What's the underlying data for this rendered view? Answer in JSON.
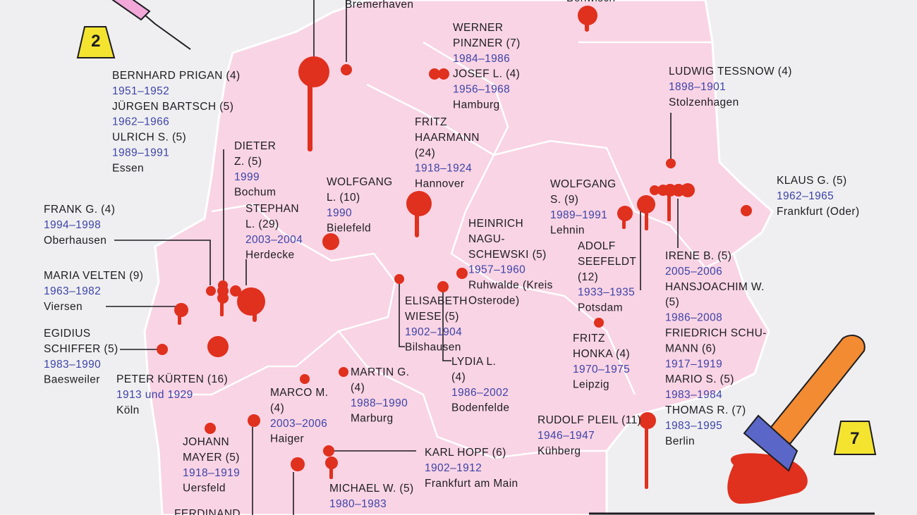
{
  "evidence_markers": [
    "2",
    "7"
  ],
  "blocks": [
    {
      "people": [],
      "place": [
        "Bremerhaven"
      ]
    },
    {
      "people": [],
      "place": [
        "Benwisch"
      ]
    },
    {
      "people": [
        {
          "name": [
            "WERNER",
            "PINZNER (7)"
          ],
          "years": "1984–1986"
        },
        {
          "name": [
            "JOSEF L. (4)"
          ],
          "years": "1956–1968"
        }
      ],
      "place": [
        "Hamburg"
      ]
    },
    {
      "people": [
        {
          "name": [
            "BERNHARD PRIGAN (4)"
          ],
          "years": "1951–1952"
        },
        {
          "name": [
            "JÜRGEN BARTSCH (5)"
          ],
          "years": "1962–1966"
        },
        {
          "name": [
            "ULRICH S. (5)"
          ],
          "years": "1989–1991"
        }
      ],
      "place": [
        "Essen"
      ]
    },
    {
      "people": [
        {
          "name": [
            "LUDWIG TESSNOW (4)"
          ],
          "years": "1898–1901"
        }
      ],
      "place": [
        "Stolzenhagen"
      ]
    },
    {
      "people": [
        {
          "name": [
            "FRITZ",
            "HAARMANN",
            "(24)"
          ],
          "years": "1918–1924"
        }
      ],
      "place": [
        "Hannover"
      ]
    },
    {
      "people": [
        {
          "name": [
            "DIETER",
            "Z. (5)"
          ],
          "years": "1999"
        }
      ],
      "place": [
        "Bochum"
      ]
    },
    {
      "people": [
        {
          "name": [
            "WOLFGANG",
            "L. (10)"
          ],
          "years": "1990"
        }
      ],
      "place": [
        "Bielefeld"
      ]
    },
    {
      "people": [
        {
          "name": [
            "WOLFGANG",
            "S. (9)"
          ],
          "years": "1989–1991"
        }
      ],
      "place": [
        "Lehnin"
      ]
    },
    {
      "people": [
        {
          "name": [
            "KLAUS G. (5)"
          ],
          "years": "1962–1965"
        }
      ],
      "place": [
        "Frankfurt (Oder)"
      ]
    },
    {
      "people": [
        {
          "name": [
            "FRANK G. (4)"
          ],
          "years": "1994–1998"
        }
      ],
      "place": [
        "Oberhausen"
      ]
    },
    {
      "people": [
        {
          "name": [
            "STEPHAN",
            "L. (29)"
          ],
          "years": "2003–2004"
        }
      ],
      "place": [
        "Herdecke"
      ]
    },
    {
      "people": [
        {
          "name": [
            "HEINRICH",
            "NAGU-",
            "SCHEWSKI (5)"
          ],
          "years": "1957–1960"
        }
      ],
      "place": [
        "Ruhwalde (Kreis",
        "Osterode)"
      ]
    },
    {
      "people": [
        {
          "name": [
            "ADOLF",
            "SEEFELDT",
            "(12)"
          ],
          "years": "1933–1935"
        }
      ],
      "place": [
        "Potsdam"
      ]
    },
    {
      "people": [
        {
          "name": [
            "IRENE B. (5)"
          ],
          "years": "2005–2006"
        },
        {
          "name": [
            "HANSJOACHIM W.",
            "(5)"
          ],
          "years": "1986–2008"
        },
        {
          "name": [
            "FRIEDRICH SCHU-",
            "MANN (6)"
          ],
          "years": "1917–1919"
        },
        {
          "name": [
            "MARIO S. (5)"
          ],
          "years": "1983–1984"
        },
        {
          "name": [
            "THOMAS R. (7)"
          ],
          "years": "1983–1995"
        }
      ],
      "place": [
        "Berlin"
      ]
    },
    {
      "people": [
        {
          "name": [
            "MARIA VELTEN (9)"
          ],
          "years": "1963–1982"
        }
      ],
      "place": [
        "Viersen"
      ]
    },
    {
      "people": [
        {
          "name": [
            "ELISABETH",
            "WIESE (5)"
          ],
          "years": "1902–1904"
        }
      ],
      "place": [
        "Bilshausen"
      ]
    },
    {
      "people": [
        {
          "name": [
            "EGIDIUS",
            "SCHIFFER (5)"
          ],
          "years": "1983–1990"
        }
      ],
      "place": [
        "Baesweiler"
      ]
    },
    {
      "people": [
        {
          "name": [
            "FRITZ",
            "HONKA (4)"
          ],
          "years": "1970–1975"
        }
      ],
      "place": [
        "Leipzig"
      ]
    },
    {
      "people": [
        {
          "name": [
            "PETER KÜRTEN (16)"
          ],
          "years": "1913 und 1929"
        }
      ],
      "place": [
        "Köln"
      ]
    },
    {
      "people": [
        {
          "name": [
            "LYDIA L.",
            "(4)"
          ],
          "years": "1986–2002"
        }
      ],
      "place": [
        "Bodenfelde"
      ]
    },
    {
      "people": [
        {
          "name": [
            "MARTIN G.",
            "(4)"
          ],
          "years": "1988–1990"
        }
      ],
      "place": [
        "Marburg"
      ]
    },
    {
      "people": [
        {
          "name": [
            "MARCO M.",
            "(4)"
          ],
          "years": "2003–2006"
        }
      ],
      "place": [
        "Haiger"
      ]
    },
    {
      "people": [
        {
          "name": [
            "RUDOLF PLEIL (11)"
          ],
          "years": "1946–1947"
        }
      ],
      "place": [
        "Kühberg"
      ]
    },
    {
      "people": [
        {
          "name": [
            "JOHANN",
            "MAYER (5)"
          ],
          "years": "1918–1919"
        }
      ],
      "place": [
        "Uersfeld"
      ]
    },
    {
      "people": [
        {
          "name": [
            "KARL HOPF (6)"
          ],
          "years": "1902–1912"
        }
      ],
      "place": [
        "Frankfurt am Main"
      ]
    },
    {
      "people": [
        {
          "name": [
            "MICHAEL W. (5)"
          ],
          "years": "1980–1983"
        }
      ],
      "place": []
    },
    {
      "people": [
        {
          "name": [
            "FERDINAND"
          ]
        }
      ],
      "place": []
    }
  ]
}
